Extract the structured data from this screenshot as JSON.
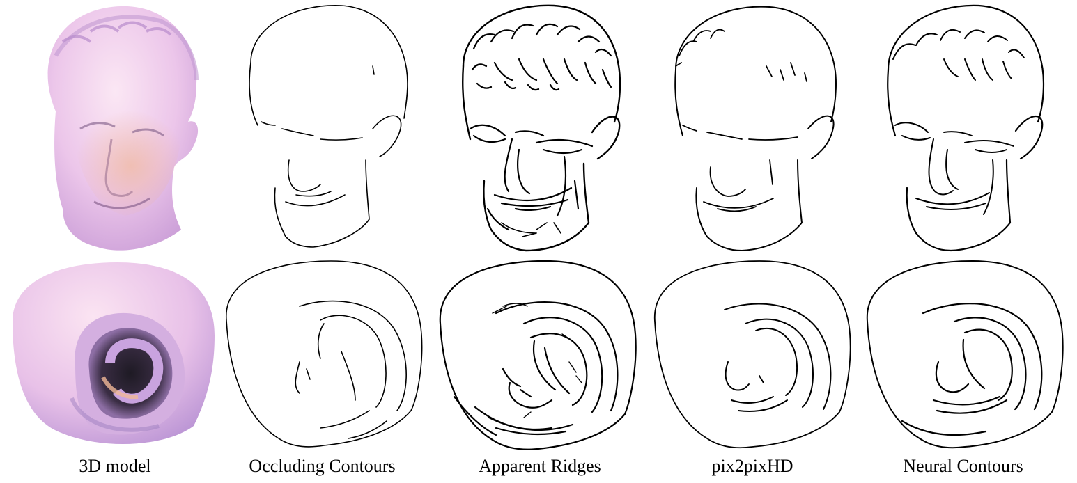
{
  "captions": {
    "col1": "3D model",
    "col2": "Occluding Contours",
    "col3": "Apparent Ridges",
    "col4": "pix2pixHD",
    "col5": "Neural Contours"
  },
  "colors": {
    "shaded_light": "#f6dcef",
    "shaded_mid": "#d9b3e6",
    "shaded_dark": "#2a1f2e",
    "shaded_warm": "#e8a782",
    "line": "#000000",
    "background": "#ffffff"
  },
  "icons": {
    "row1": "bust-head",
    "row2": "ear-model"
  }
}
